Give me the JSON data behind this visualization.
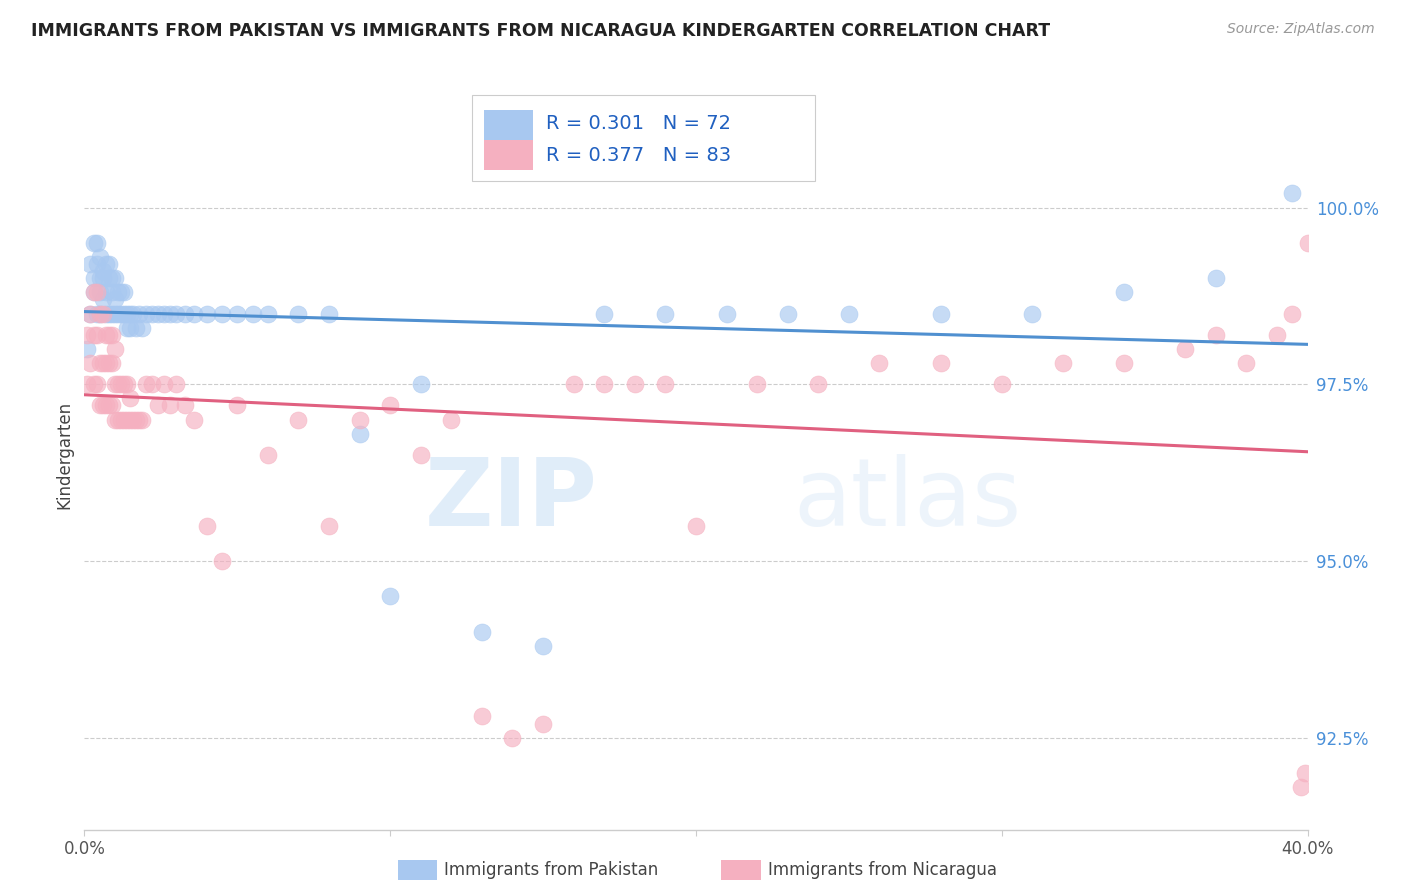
{
  "title": "IMMIGRANTS FROM PAKISTAN VS IMMIGRANTS FROM NICARAGUA KINDERGARTEN CORRELATION CHART",
  "source": "Source: ZipAtlas.com",
  "ylabel": "Kindergarten",
  "yticks": [
    92.5,
    95.0,
    97.5,
    100.0
  ],
  "ytick_labels": [
    "92.5%",
    "95.0%",
    "97.5%",
    "100.0%"
  ],
  "xmin": 0.0,
  "xmax": 0.4,
  "ymin": 91.2,
  "ymax": 101.8,
  "pakistan_R": 0.301,
  "pakistan_N": 72,
  "nicaragua_R": 0.377,
  "nicaragua_N": 83,
  "pakistan_color": "#a8c8f0",
  "nicaragua_color": "#f5b0c0",
  "pakistan_line_color": "#5090d0",
  "nicaragua_line_color": "#e06080",
  "legend_R_color": "#2060c0",
  "watermark_zip": "ZIP",
  "watermark_atlas": "atlas",
  "pakistan_x": [
    0.001,
    0.002,
    0.002,
    0.003,
    0.003,
    0.003,
    0.004,
    0.004,
    0.004,
    0.005,
    0.005,
    0.005,
    0.005,
    0.006,
    0.006,
    0.006,
    0.007,
    0.007,
    0.007,
    0.008,
    0.008,
    0.008,
    0.009,
    0.009,
    0.009,
    0.01,
    0.01,
    0.01,
    0.011,
    0.011,
    0.012,
    0.012,
    0.013,
    0.013,
    0.014,
    0.014,
    0.015,
    0.015,
    0.016,
    0.017,
    0.018,
    0.019,
    0.02,
    0.022,
    0.024,
    0.026,
    0.028,
    0.03,
    0.033,
    0.036,
    0.04,
    0.045,
    0.05,
    0.055,
    0.06,
    0.07,
    0.08,
    0.09,
    0.1,
    0.11,
    0.13,
    0.15,
    0.17,
    0.19,
    0.21,
    0.23,
    0.25,
    0.28,
    0.31,
    0.34,
    0.37,
    0.395
  ],
  "pakistan_y": [
    98.0,
    98.5,
    99.2,
    98.8,
    99.0,
    99.5,
    99.2,
    99.5,
    98.5,
    99.0,
    98.8,
    99.3,
    98.5,
    99.0,
    98.7,
    99.1,
    98.5,
    99.2,
    98.8,
    99.0,
    98.5,
    99.2,
    98.8,
    99.0,
    98.5,
    98.5,
    99.0,
    98.7,
    98.5,
    98.8,
    98.5,
    98.8,
    98.5,
    98.8,
    98.5,
    98.3,
    98.5,
    98.3,
    98.5,
    98.3,
    98.5,
    98.3,
    98.5,
    98.5,
    98.5,
    98.5,
    98.5,
    98.5,
    98.5,
    98.5,
    98.5,
    98.5,
    98.5,
    98.5,
    98.5,
    98.5,
    98.5,
    96.8,
    94.5,
    97.5,
    94.0,
    93.8,
    98.5,
    98.5,
    98.5,
    98.5,
    98.5,
    98.5,
    98.5,
    98.8,
    99.0,
    100.2
  ],
  "nicaragua_x": [
    0.001,
    0.001,
    0.002,
    0.002,
    0.003,
    0.003,
    0.003,
    0.004,
    0.004,
    0.004,
    0.005,
    0.005,
    0.005,
    0.006,
    0.006,
    0.006,
    0.007,
    0.007,
    0.007,
    0.008,
    0.008,
    0.008,
    0.009,
    0.009,
    0.009,
    0.01,
    0.01,
    0.01,
    0.011,
    0.011,
    0.012,
    0.012,
    0.013,
    0.013,
    0.014,
    0.014,
    0.015,
    0.015,
    0.016,
    0.017,
    0.018,
    0.019,
    0.02,
    0.022,
    0.024,
    0.026,
    0.028,
    0.03,
    0.033,
    0.036,
    0.04,
    0.045,
    0.05,
    0.06,
    0.07,
    0.08,
    0.09,
    0.1,
    0.11,
    0.12,
    0.13,
    0.14,
    0.15,
    0.16,
    0.17,
    0.18,
    0.19,
    0.2,
    0.22,
    0.24,
    0.26,
    0.28,
    0.3,
    0.32,
    0.34,
    0.36,
    0.37,
    0.38,
    0.39,
    0.395,
    0.398,
    0.399,
    0.4
  ],
  "nicaragua_y": [
    97.5,
    98.2,
    97.8,
    98.5,
    97.5,
    98.2,
    98.8,
    97.5,
    98.2,
    98.8,
    97.2,
    97.8,
    98.5,
    97.2,
    97.8,
    98.5,
    97.2,
    97.8,
    98.2,
    97.2,
    97.8,
    98.2,
    97.2,
    97.8,
    98.2,
    97.0,
    97.5,
    98.0,
    97.0,
    97.5,
    97.0,
    97.5,
    97.0,
    97.5,
    97.0,
    97.5,
    97.0,
    97.3,
    97.0,
    97.0,
    97.0,
    97.0,
    97.5,
    97.5,
    97.2,
    97.5,
    97.2,
    97.5,
    97.2,
    97.0,
    95.5,
    95.0,
    97.2,
    96.5,
    97.0,
    95.5,
    97.0,
    97.2,
    96.5,
    97.0,
    92.8,
    92.5,
    92.7,
    97.5,
    97.5,
    97.5,
    97.5,
    95.5,
    97.5,
    97.5,
    97.8,
    97.8,
    97.5,
    97.8,
    97.8,
    98.0,
    98.2,
    97.8,
    98.2,
    98.5,
    91.8,
    92.0,
    99.5
  ]
}
